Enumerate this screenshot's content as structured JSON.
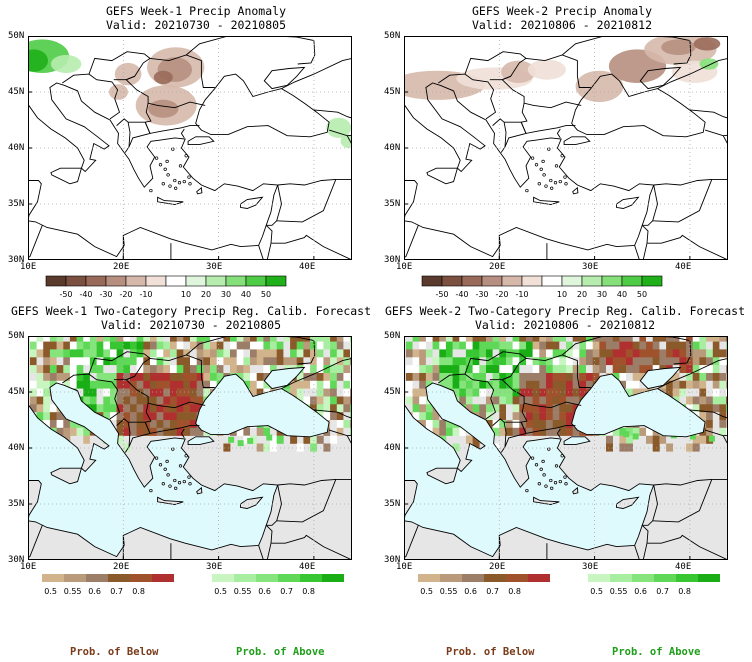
{
  "panels": [
    {
      "line1": "GEFS Week-1 Precip Anomaly",
      "line2": "Valid: 20210730 - 20210805"
    },
    {
      "line1": "GEFS Week-2 Precip Anomaly",
      "line2": "Valid: 20210806 - 20210812"
    },
    {
      "line1": "GEFS Week-1 Two-Category Precip Reg. Calib. Forecast",
      "line2": "Valid: 20210730 - 20210805"
    },
    {
      "line1": "GEFS Week-2 Two-Category Precip Reg. Calib. Forecast",
      "line2": "Valid: 20210806 - 20210812"
    }
  ],
  "axes": {
    "lat_labels": [
      "50N",
      "45N",
      "40N",
      "35N",
      "30N"
    ],
    "lon_labels": [
      "10E",
      "20E",
      "30E",
      "40E"
    ]
  },
  "anomaly_colorbar": {
    "labels": [
      "-50",
      "-40",
      "-30",
      "-20",
      "-10",
      "10",
      "20",
      "30",
      "40",
      "50"
    ],
    "colors": [
      "#5a3a2c",
      "#7b5040",
      "#996a5a",
      "#b68f80",
      "#d6b8ab",
      "#f0e0d8",
      "#ffffff",
      "#dff5dc",
      "#b6ecae",
      "#85e07a",
      "#4fcc46",
      "#1fb01a"
    ]
  },
  "prob_below": {
    "labels": [
      "0.5",
      "0.55",
      "0.6",
      "0.7",
      "0.8"
    ],
    "colors": [
      "#d2b48c",
      "#b99a7a",
      "#9c7d68",
      "#8b5a2b",
      "#a0522d",
      "#b03030"
    ],
    "caption": "Prob. of Below",
    "caption_color": "#7a3b1b"
  },
  "prob_above": {
    "labels": [
      "0.5",
      "0.55",
      "0.6",
      "0.7",
      "0.8"
    ],
    "colors": [
      "#c8f5c0",
      "#a8eea0",
      "#86e47d",
      "#5fd858",
      "#38c732",
      "#1aae16"
    ],
    "caption": "Prob. of Above",
    "caption_color": "#1f9e1a"
  },
  "map_colors": {
    "sea_fill": "#dffafd",
    "no_data": "#e6e6e6",
    "coast": "#000000"
  }
}
